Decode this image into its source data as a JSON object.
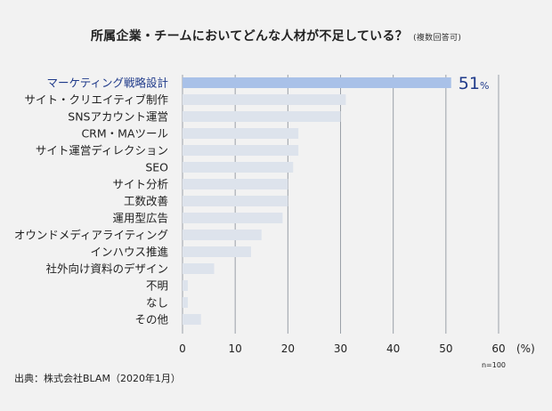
{
  "chart_data": {
    "type": "bar",
    "orientation": "horizontal",
    "title": "所属企業・チームにおいてどんな人材が不足している？",
    "subtitle": "(複数回答可)",
    "categories": [
      "マーケティング戦略設計",
      "サイト・クリエイティブ制作",
      "SNSアカウント運営",
      "CRM・MAツール",
      "サイト運営ディレクション",
      "SEO",
      "サイト分析",
      "工数改善",
      "運用型広告",
      "オウンドメディアライティング",
      "インハウス推進",
      "社外向け資料のデザイン",
      "不明",
      "なし",
      "その他"
    ],
    "values": [
      51,
      31,
      30,
      22,
      22,
      21,
      20,
      20,
      19,
      15,
      13,
      6,
      1,
      1,
      3.5
    ],
    "highlight_index": 0,
    "highlight_label": "51",
    "highlight_unit": "%",
    "xlim": [
      0,
      60
    ],
    "xticks": [
      "0",
      "10",
      "20",
      "30",
      "40",
      "50",
      "60"
    ],
    "xunit": "(%)",
    "note": "n=100",
    "grid": true,
    "colors": {
      "highlight": "#a9c1e8",
      "bar": "#dde3ec",
      "highlight_text": "#1f3a8a",
      "grid": "#9aa0a8"
    }
  },
  "source": "出典：株式会社BLAM（2020年1月）"
}
